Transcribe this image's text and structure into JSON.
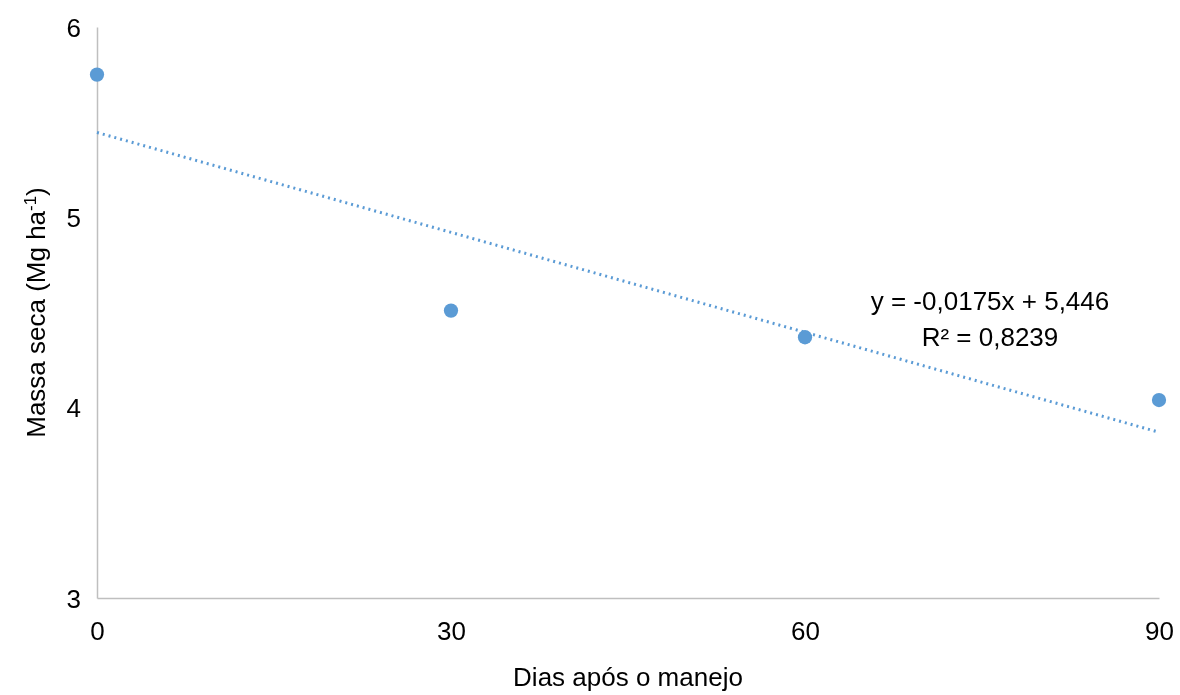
{
  "chart_data": {
    "type": "scatter",
    "xlabel": "Dias após o manejo",
    "ylabel": "Massa seca (Mg ha$^{-1}$)",
    "xlim": [
      0,
      90
    ],
    "xticks": [
      0,
      30,
      60,
      90
    ],
    "ylim": [
      3,
      6
    ],
    "yticks": [
      3,
      4,
      5,
      6
    ],
    "grid": false,
    "series": [
      {
        "color": "#5b9bd5",
        "marker": "circle",
        "x": [
          0,
          30,
          60,
          90
        ],
        "values": [
          5.75,
          4.51,
          4.37,
          4.04
        ]
      },
      {
        "type": "line",
        "color": "#5b9bd5",
        "line_style": "dotted",
        "marker": "none",
        "x": [
          0,
          90
        ],
        "values": [
          5.446,
          3.871
        ]
      }
    ],
    "annotations": [
      "y = -0,0175x + 5,446",
      "R² = 0,8239"
    ]
  }
}
